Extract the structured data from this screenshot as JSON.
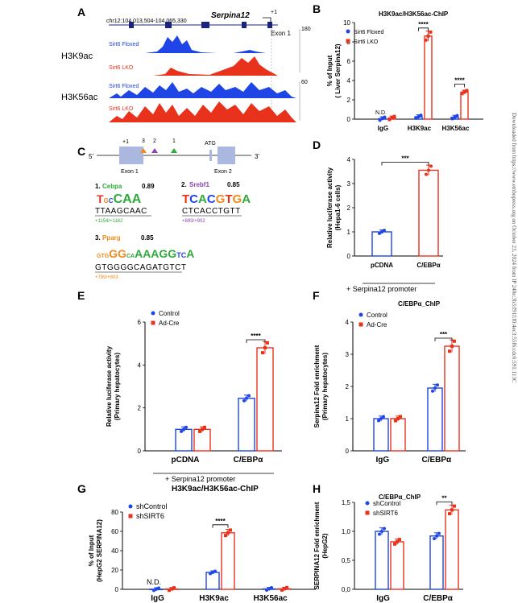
{
  "colors": {
    "blue": "#1f45e6",
    "red": "#e8321c",
    "cebpa": "#2eaa3a",
    "srebf1": "#8c44b0",
    "pparg": "#f08a1a"
  },
  "side_note": "Downloaded from https://www.embopress.org on October 23, 2024 from IP 240e:3b3:f91f:f0:4ec3:55f6:cdc6:591:113C",
  "panels": {
    "A": {
      "letter": "A",
      "coords": "chr12:104,013,504-104,065,330",
      "gene": "Serpina12",
      "tss": "+1",
      "exon": "Exon 1",
      "tracks": [
        {
          "row": "H3K9ac",
          "scale": "180",
          "floxed": "Sirt6 Floxed",
          "lko": "Sirt6 LKO"
        },
        {
          "row": "H3K56ac",
          "scale": "60",
          "floxed": "Sirt6 Floxed",
          "lko": "Sirt6 LKO"
        }
      ]
    },
    "C": {
      "letter": "C",
      "five": "5'",
      "three": "3'",
      "tss": "+1",
      "atg": "ATG",
      "exon1": "Exon 1",
      "exon2": "Exon 2",
      "markers": [
        "3",
        "2",
        "1"
      ],
      "motifs": [
        {
          "num": "1.",
          "name": "Cebpa",
          "score": "0.89",
          "seq": "TTAAGCAAC",
          "pos": "+1154/+1162"
        },
        {
          "num": "2.",
          "name": "Srebf1",
          "score": "0.85",
          "seq": "CTCACCTGTT",
          "pos": "+893/+902"
        },
        {
          "num": "3.",
          "name": "Pparg",
          "score": "0.85",
          "seq": "GTGGGGCAGATGTCT",
          "pos": "+789/+803"
        }
      ]
    }
  },
  "chart_data": [
    {
      "id": "B",
      "letter": "B",
      "type": "bar",
      "title": "H3K9ac/H3K56ac-ChIP",
      "ylabel": "% of Input",
      "ylabel2": "( Liver Serpina12)",
      "categories": [
        "IgG",
        "H3K9ac",
        "H3K56ac"
      ],
      "ylim": [
        0,
        10
      ],
      "yticks": [
        0,
        2,
        4,
        6,
        8,
        10
      ],
      "series": [
        {
          "name": "Sirt6 Floxed",
          "values": [
            0.05,
            0.25,
            0.2
          ]
        },
        {
          "name": "Sirt6 LKO",
          "values": [
            0.12,
            8.6,
            2.8
          ]
        }
      ],
      "annotations": [
        {
          "text": "N.D.",
          "category": 0
        },
        {
          "text": "****",
          "category": 1
        },
        {
          "text": "****",
          "category": 2
        }
      ]
    },
    {
      "id": "D",
      "letter": "D",
      "type": "bar",
      "title": "",
      "ylabel": "Relative luciferase activity",
      "ylabel2": "(Hepa1-6 cells)",
      "categories": [
        "pCDNA",
        "C/EBPα"
      ],
      "ylim": [
        0,
        4
      ],
      "yticks": [
        0,
        1,
        2,
        3,
        4
      ],
      "xnote": "+ Serpina12 promoter",
      "series": [
        {
          "name": "",
          "values": [
            1.0,
            3.55
          ]
        }
      ],
      "annotations": [
        {
          "text": "***",
          "between": [
            0,
            1
          ]
        }
      ]
    },
    {
      "id": "E",
      "letter": "E",
      "type": "bar",
      "title": "",
      "ylabel": "Relative luciferase activity",
      "ylabel2": "(Primary hepatocytes)",
      "categories": [
        "pCDNA",
        "C/EBPα"
      ],
      "ylim": [
        0,
        6
      ],
      "yticks": [
        0,
        2,
        4,
        6
      ],
      "xnote": "+ Serpina12 promoter",
      "series": [
        {
          "name": "Control",
          "values": [
            1.0,
            2.45
          ]
        },
        {
          "name": "Ad-Cre",
          "values": [
            1.0,
            4.8
          ]
        }
      ],
      "annotations": [
        {
          "text": "****",
          "category": 1
        }
      ]
    },
    {
      "id": "F",
      "letter": "F",
      "type": "bar",
      "title": "C/EBPα_ChIP",
      "ylabel": "Serpina12 Fold enrichment",
      "ylabel2": "(Primary hepatocytes)",
      "categories": [
        "IgG",
        "C/EBPα"
      ],
      "ylim": [
        0,
        4
      ],
      "yticks": [
        0,
        1,
        2,
        3,
        4
      ],
      "series": [
        {
          "name": "Control",
          "values": [
            1.0,
            1.95
          ]
        },
        {
          "name": "Ad-Cre",
          "values": [
            1.0,
            3.25
          ]
        }
      ],
      "annotations": [
        {
          "text": "***",
          "category": 1
        }
      ]
    },
    {
      "id": "G",
      "letter": "G",
      "type": "bar",
      "title": "H3K9ac/H3K56ac-ChIP",
      "ylabel": "% of Input",
      "ylabel2": "(HepG2 SERPINA12)",
      "categories": [
        "IgG",
        "H3K9ac",
        "H3K56ac"
      ],
      "ylim": [
        0,
        80
      ],
      "yticks": [
        0,
        20,
        40,
        60,
        80
      ],
      "series": [
        {
          "name": "shControl",
          "values": [
            0.1,
            17.5,
            0.4
          ]
        },
        {
          "name": "shSIRT6",
          "values": [
            0.3,
            58.5,
            0.5
          ]
        }
      ],
      "annotations": [
        {
          "text": "N.D.",
          "category": 0
        },
        {
          "text": "****",
          "category": 1
        }
      ]
    },
    {
      "id": "H",
      "letter": "H",
      "type": "bar",
      "title": "C/EBPα_ChIP",
      "ylabel": "SERPINA12 Fold enrichment",
      "ylabel2": "(HepG2)",
      "categories": [
        "IgG",
        "C/EBPα"
      ],
      "ylim": [
        0,
        1.5
      ],
      "yticks": [
        "0,0",
        "0,5",
        "1,0",
        "1,5"
      ],
      "ytickvals": [
        0,
        0.5,
        1.0,
        1.5
      ],
      "series": [
        {
          "name": "shControl",
          "values": [
            1.0,
            0.92
          ]
        },
        {
          "name": "shSIRT6",
          "values": [
            0.82,
            1.37
          ]
        }
      ],
      "annotations": [
        {
          "text": "**",
          "category": 1
        }
      ]
    }
  ]
}
